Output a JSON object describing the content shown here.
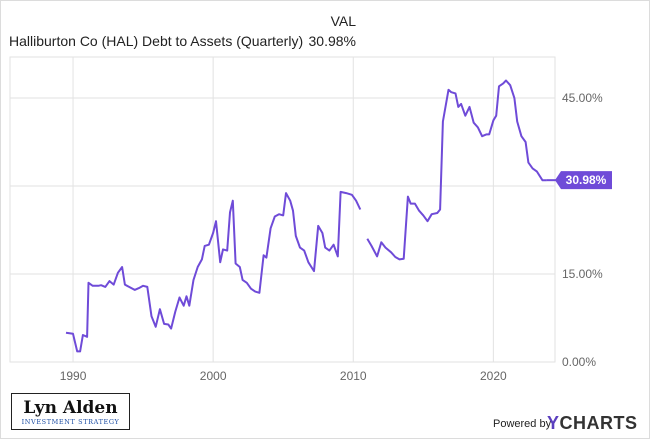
{
  "header": {
    "column_label": "VAL",
    "series_title": "Halliburton Co (HAL) Debt to Assets (Quarterly)",
    "series_value": "30.98%"
  },
  "branding": {
    "logo_name": "Lyn Alden",
    "logo_sub": "INVESTMENT STRATEGY",
    "powered_by": "Powered by",
    "ycharts_y": "Y",
    "ycharts_rest": "CHARTS"
  },
  "colors": {
    "line": "#6f4bd8",
    "callout": "#6f4bd8",
    "grid": "#e2e2e2",
    "axis_text": "#666666"
  },
  "chart_data": {
    "type": "line",
    "title": "Halliburton Co (HAL) Debt to Assets (Quarterly)",
    "xlabel": "",
    "ylabel": "",
    "xlim": [
      1985.5,
      2024.4
    ],
    "ylim": [
      0,
      52
    ],
    "x_ticks": [
      1990,
      2000,
      2010,
      2020
    ],
    "x_tick_labels": [
      "1990",
      "2000",
      "2010",
      "2020"
    ],
    "y_ticks": [
      0,
      15,
      30,
      45
    ],
    "y_tick_labels": [
      "0.00%",
      "15.00%",
      "",
      "45.00%"
    ],
    "grid": true,
    "last_value_label": "30.98%",
    "series": [
      {
        "segments": [
          [
            [
              1989.5,
              5.0
            ],
            [
              1990.0,
              4.8
            ],
            [
              1990.3,
              1.8
            ],
            [
              1990.5,
              1.8
            ],
            [
              1990.7,
              4.6
            ],
            [
              1991.0,
              4.3
            ],
            [
              1991.1,
              13.5
            ],
            [
              1991.4,
              13.0
            ],
            [
              1991.8,
              13.0
            ],
            [
              1992.0,
              13.1
            ],
            [
              1992.3,
              12.8
            ],
            [
              1992.6,
              13.8
            ],
            [
              1992.9,
              13.2
            ],
            [
              1993.2,
              15.2
            ],
            [
              1993.5,
              16.2
            ],
            [
              1993.7,
              13.2
            ],
            [
              1994.0,
              12.8
            ],
            [
              1994.4,
              12.3
            ],
            [
              1994.7,
              12.6
            ],
            [
              1995.0,
              13.0
            ],
            [
              1995.3,
              12.8
            ],
            [
              1995.6,
              7.8
            ],
            [
              1995.9,
              6.0
            ],
            [
              1996.2,
              9.0
            ],
            [
              1996.5,
              6.5
            ],
            [
              1996.8,
              6.4
            ],
            [
              1997.0,
              5.7
            ],
            [
              1997.3,
              8.6
            ],
            [
              1997.6,
              11.0
            ],
            [
              1997.9,
              9.6
            ],
            [
              1998.1,
              11.2
            ],
            [
              1998.3,
              9.6
            ],
            [
              1998.6,
              14.0
            ],
            [
              1998.9,
              16.2
            ],
            [
              1999.2,
              17.5
            ],
            [
              1999.4,
              19.8
            ],
            [
              1999.7,
              20.0
            ],
            [
              2000.0,
              22.0
            ],
            [
              2000.2,
              24.0
            ],
            [
              2000.5,
              17.0
            ],
            [
              2000.7,
              19.2
            ],
            [
              2001.0,
              19.0
            ],
            [
              2001.2,
              25.5
            ],
            [
              2001.4,
              27.5
            ],
            [
              2001.6,
              16.8
            ],
            [
              2001.9,
              16.2
            ],
            [
              2002.1,
              14.0
            ],
            [
              2002.4,
              13.5
            ],
            [
              2002.7,
              12.5
            ],
            [
              2003.0,
              12.0
            ],
            [
              2003.3,
              11.8
            ],
            [
              2003.6,
              18.2
            ],
            [
              2003.8,
              17.8
            ],
            [
              2004.1,
              22.8
            ],
            [
              2004.4,
              24.8
            ],
            [
              2004.7,
              25.2
            ],
            [
              2005.0,
              25.0
            ],
            [
              2005.2,
              28.8
            ],
            [
              2005.5,
              27.5
            ],
            [
              2005.7,
              25.8
            ],
            [
              2005.9,
              21.5
            ],
            [
              2006.2,
              19.5
            ],
            [
              2006.5,
              19.0
            ],
            [
              2006.8,
              17.0
            ],
            [
              2007.2,
              15.5
            ],
            [
              2007.5,
              23.2
            ],
            [
              2007.8,
              22.0
            ],
            [
              2008.0,
              19.5
            ],
            [
              2008.3,
              19.0
            ],
            [
              2008.6,
              20.0
            ],
            [
              2008.9,
              18.0
            ],
            [
              2009.1,
              29.0
            ],
            [
              2009.5,
              28.8
            ],
            [
              2009.9,
              28.5
            ],
            [
              2010.2,
              27.5
            ],
            [
              2010.5,
              26.0
            ]
          ],
          [
            [
              2011.0,
              21.0
            ],
            [
              2011.3,
              19.8
            ],
            [
              2011.7,
              18.0
            ],
            [
              2012.0,
              20.4
            ],
            [
              2012.3,
              19.5
            ],
            [
              2012.7,
              18.7
            ],
            [
              2013.0,
              17.9
            ],
            [
              2013.3,
              17.5
            ],
            [
              2013.6,
              17.6
            ],
            [
              2013.9,
              28.2
            ],
            [
              2014.1,
              27.0
            ],
            [
              2014.4,
              27.0
            ],
            [
              2014.7,
              25.8
            ],
            [
              2015.0,
              25.0
            ],
            [
              2015.3,
              24.0
            ],
            [
              2015.6,
              25.2
            ],
            [
              2016.0,
              25.4
            ],
            [
              2016.2,
              26.0
            ],
            [
              2016.4,
              41.0
            ],
            [
              2016.8,
              46.4
            ],
            [
              2017.0,
              46.0
            ],
            [
              2017.3,
              45.8
            ],
            [
              2017.5,
              43.5
            ],
            [
              2017.7,
              44.0
            ],
            [
              2018.0,
              42.0
            ],
            [
              2018.3,
              43.5
            ],
            [
              2018.6,
              40.8
            ],
            [
              2018.9,
              40.0
            ],
            [
              2019.2,
              38.5
            ],
            [
              2019.5,
              38.8
            ],
            [
              2019.7,
              38.8
            ],
            [
              2020.0,
              41.2
            ],
            [
              2020.2,
              42.0
            ],
            [
              2020.4,
              47.0
            ],
            [
              2020.7,
              47.5
            ],
            [
              2020.9,
              48.0
            ],
            [
              2021.2,
              47.2
            ],
            [
              2021.5,
              45.0
            ],
            [
              2021.7,
              41.0
            ],
            [
              2022.0,
              38.5
            ],
            [
              2022.3,
              37.5
            ],
            [
              2022.5,
              34.0
            ],
            [
              2022.8,
              33.0
            ],
            [
              2023.1,
              32.5
            ],
            [
              2023.5,
              31.0
            ],
            [
              2023.8,
              31.0
            ]
          ]
        ]
      }
    ]
  }
}
